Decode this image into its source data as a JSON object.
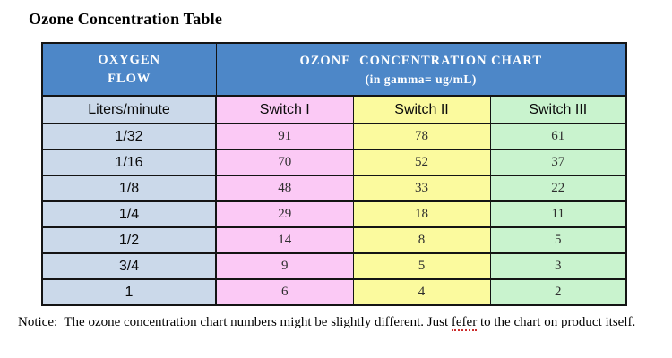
{
  "page": {
    "title": "Ozone Concentration Table"
  },
  "table": {
    "header": {
      "oxygen_line1": "OXYGEN",
      "oxygen_line2": "FLOW",
      "ozone_line1": "OZONE  CONCENTRATION CHART",
      "ozone_line2": "(in gamma= ug/mL)"
    },
    "subheader": {
      "flow_unit": "Liters/minute",
      "switch1": "Switch I",
      "switch2": "Switch II",
      "switch3": "Switch III"
    },
    "rows": [
      {
        "flow": "1/32",
        "s1": "91",
        "s2": "78",
        "s3": "61"
      },
      {
        "flow": "1/16",
        "s1": "70",
        "s2": "52",
        "s3": "37"
      },
      {
        "flow": "1/8",
        "s1": "48",
        "s2": "33",
        "s3": "22"
      },
      {
        "flow": "1/4",
        "s1": "29",
        "s2": "18",
        "s3": "11"
      },
      {
        "flow": "1/2",
        "s1": "14",
        "s2": "8",
        "s3": "5"
      },
      {
        "flow": "3/4",
        "s1": "9",
        "s2": "5",
        "s3": "3"
      },
      {
        "flow": "1",
        "s1": "6",
        "s2": "4",
        "s3": "2"
      }
    ],
    "colors": {
      "header_blue": "#4d87c8",
      "flow_column_blue": "#cbd9ea",
      "switch1_pink": "#fbc9f5",
      "switch2_yellow": "#fbfa9e",
      "switch3_green": "#c9f3ce",
      "border": "#141414",
      "header_text": "#ffffff"
    }
  },
  "notice": {
    "prefix": "Notice:  The ozone concentration chart numbers might be slightly different. Just ",
    "misspelled_word": "fefer",
    "suffix": " to the chart on product itself."
  },
  "chart_data": {
    "type": "table",
    "title": "Ozone Concentration Table",
    "subtitle": "OZONE CONCENTRATION CHART (in gamma= ug/mL)",
    "columns": [
      "Liters/minute",
      "Switch I",
      "Switch II",
      "Switch III"
    ],
    "rows": [
      [
        "1/32",
        91,
        78,
        61
      ],
      [
        "1/16",
        70,
        52,
        37
      ],
      [
        "1/8",
        48,
        33,
        22
      ],
      [
        "1/4",
        29,
        18,
        11
      ],
      [
        "1/2",
        14,
        8,
        5
      ],
      [
        "3/4",
        9,
        5,
        3
      ],
      [
        "1",
        6,
        4,
        2
      ]
    ]
  }
}
